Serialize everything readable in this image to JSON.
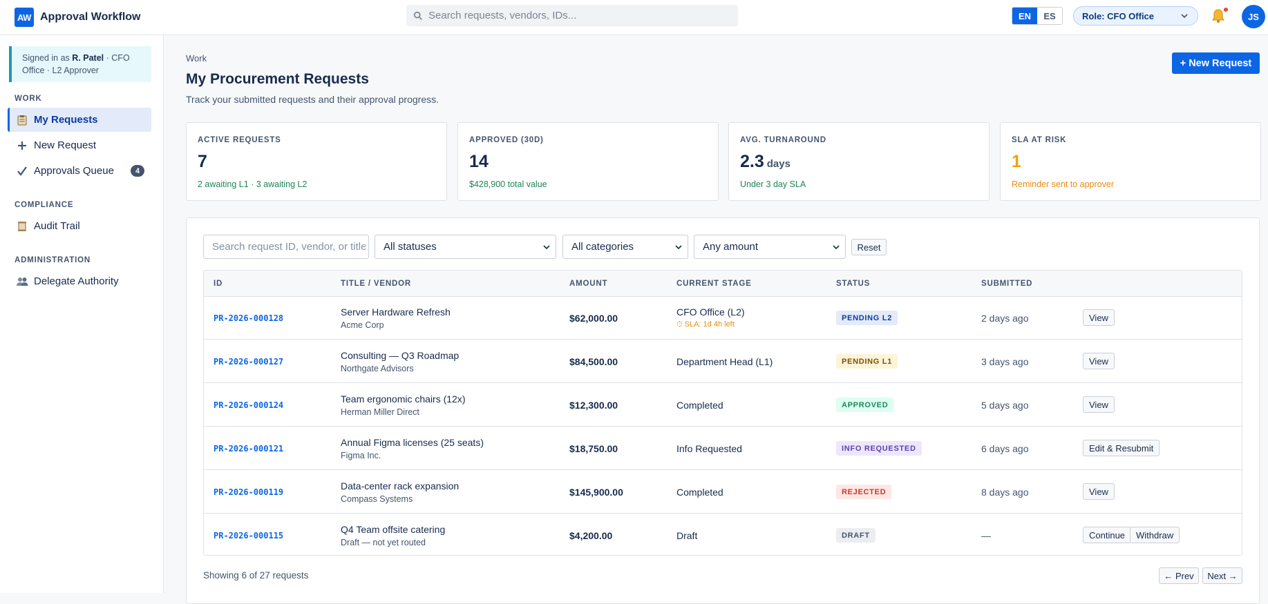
{
  "app": {
    "logo": "AW",
    "title": "Approval Workflow"
  },
  "topbar": {
    "search_placeholder": "Search requests, vendors, IDs...",
    "languages": [
      "EN",
      "ES"
    ],
    "active_language": "EN",
    "role_label": "Role:",
    "role_value": "CFO Office",
    "avatar": "JS",
    "notification_unread": true
  },
  "sidebar": {
    "signed_prefix": "Signed in as",
    "signed_name": "R. Patel",
    "signed_suffix": "· CFO Office · L2 Approver",
    "sections": [
      {
        "title": "WORK",
        "items": [
          {
            "label": "My Requests",
            "icon": "clipboard-icon",
            "active": true
          },
          {
            "label": "New Request",
            "icon": "plus-icon"
          },
          {
            "label": "Approvals Queue",
            "icon": "checkmark-icon",
            "badge": "4"
          }
        ]
      },
      {
        "title": "COMPLIANCE",
        "items": [
          {
            "label": "Audit Trail",
            "icon": "scroll-icon"
          }
        ]
      },
      {
        "title": "ADMINISTRATION",
        "items": [
          {
            "label": "Delegate Authority",
            "icon": "people-icon"
          }
        ]
      }
    ]
  },
  "header": {
    "breadcrumb": "Work",
    "title": "My Procurement Requests",
    "subtitle": "Track your submitted requests and their approval progress.",
    "new_button": "+ New Request"
  },
  "stats": [
    {
      "label": "ACTIVE REQUESTS",
      "value": "7",
      "unit": "",
      "note": "2 awaiting L1 · 3 awaiting L2"
    },
    {
      "label": "APPROVED (30D)",
      "value": "14",
      "unit": "",
      "note": "$428,900 total value"
    },
    {
      "label": "AVG. TURNAROUND",
      "value": "2.3",
      "unit": "days",
      "note": "Under 3 day SLA"
    },
    {
      "label": "SLA AT RISK",
      "value": "1",
      "unit": "",
      "note": "Reminder sent to approver"
    }
  ],
  "filters": {
    "search_placeholder": "Search request ID, vendor, or title",
    "status": "All statuses",
    "category": "All categories",
    "amount": "Any amount",
    "reset": "Reset"
  },
  "table": {
    "columns": [
      "ID",
      "TITLE / VENDOR",
      "AMOUNT",
      "CURRENT STAGE",
      "STATUS",
      "SUBMITTED"
    ],
    "rows": [
      {
        "id": "PR-2026-000128",
        "title": "Server Hardware Refresh",
        "vendor": "Acme Corp",
        "amount": "$62,000.00",
        "stage": "CFO Office (L2)",
        "sla": "⏱ SLA: 1d 4h left",
        "status": "PENDING L2",
        "submitted": "2 days ago",
        "actions": [
          "View"
        ]
      },
      {
        "id": "PR-2026-000127",
        "title": "Consulting — Q3 Roadmap",
        "vendor": "Northgate Advisors",
        "amount": "$84,500.00",
        "stage": "Department Head (L1)",
        "sla": "",
        "status": "PENDING L1",
        "submitted": "3 days ago",
        "actions": [
          "View"
        ]
      },
      {
        "id": "PR-2026-000124",
        "title": "Team ergonomic chairs (12x)",
        "vendor": "Herman Miller Direct",
        "amount": "$12,300.00",
        "stage": "Completed",
        "sla": "",
        "status": "APPROVED",
        "submitted": "5 days ago",
        "actions": [
          "View"
        ]
      },
      {
        "id": "PR-2026-000121",
        "title": "Annual Figma licenses (25 seats)",
        "vendor": "Figma Inc.",
        "amount": "$18,750.00",
        "stage": "Info Requested",
        "sla": "",
        "status": "INFO REQUESTED",
        "submitted": "6 days ago",
        "actions": [
          "Edit & Resubmit"
        ]
      },
      {
        "id": "PR-2026-000119",
        "title": "Data-center rack expansion",
        "vendor": "Compass Systems",
        "amount": "$145,900.00",
        "stage": "Completed",
        "sla": "",
        "status": "REJECTED",
        "submitted": "8 days ago",
        "actions": [
          "View"
        ]
      },
      {
        "id": "PR-2026-000115",
        "title": "Q4 Team offsite catering",
        "vendor": "Draft — not yet routed",
        "amount": "$4,200.00",
        "stage": "Draft",
        "sla": "",
        "status": "DRAFT",
        "submitted": "—",
        "actions": [
          "Continue",
          "Withdraw"
        ]
      }
    ]
  },
  "footer": {
    "showing": "Showing 6 of 27 requests",
    "prev": "← Prev",
    "next": "Next →"
  },
  "colors": {
    "primary": "#0c66e4",
    "success": "#1f845a",
    "warning": "#f5a10a",
    "danger": "#c9372c"
  }
}
